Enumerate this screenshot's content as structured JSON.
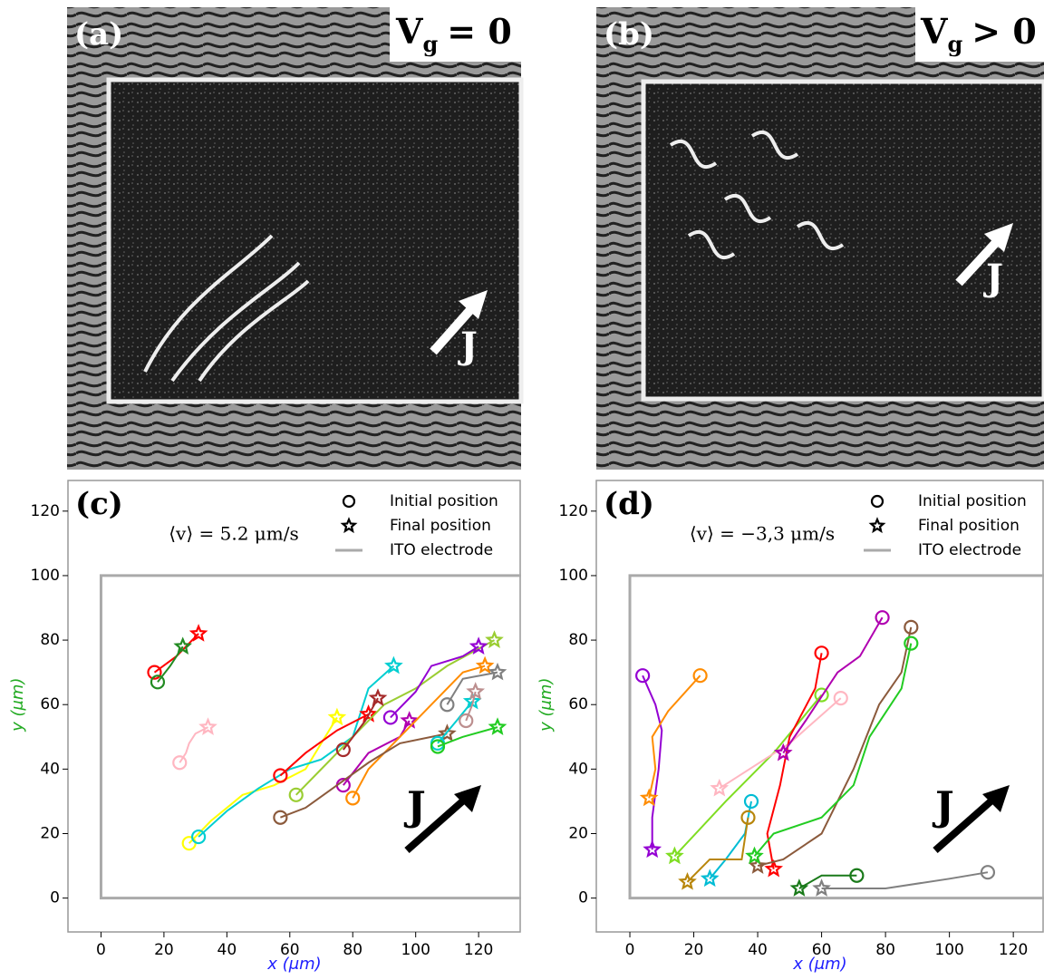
{
  "images": [
    {
      "label": "(a)",
      "symbol": "V",
      "subscript": "g",
      "relation": "= 0",
      "current_label": "J"
    },
    {
      "label": "(b)",
      "symbol": "V",
      "subscript": "g",
      "relation": "> 0",
      "current_label": "J"
    }
  ],
  "chart_data": [
    {
      "type": "line",
      "panel_label": "(c)",
      "annotation": "⟨v⟩ = 5.2 μm/s",
      "current_label": "J",
      "x_label": "x (μm)",
      "y_label": "y (μm)",
      "xlim": [
        -10.5,
        133.5
      ],
      "ylim": [
        -10.5,
        129.5
      ],
      "xticks": [
        0,
        20,
        40,
        60,
        80,
        100,
        120
      ],
      "yticks": [
        0,
        20,
        40,
        60,
        80,
        100,
        120
      ],
      "initial_marker_label": "Initial position",
      "final_marker_label": "Final position",
      "electrode": {
        "name": "ITO electrode",
        "color": "#aaaaaa",
        "x": [
          140,
          0,
          0,
          140
        ],
        "y": [
          100,
          100,
          0,
          0
        ]
      },
      "trajectories": [
        {
          "color": "#ff0000",
          "x": [
            17,
            24,
            31
          ],
          "y": [
            70,
            75,
            82
          ]
        },
        {
          "color": "#228b22",
          "x": [
            18,
            22,
            26
          ],
          "y": [
            67,
            72,
            78
          ]
        },
        {
          "color": "#ffb6c1",
          "x": [
            25,
            27,
            28,
            30,
            34
          ],
          "y": [
            42,
            45,
            48,
            51,
            53
          ]
        },
        {
          "color": "#ffff00",
          "x": [
            28,
            35,
            45,
            55,
            65,
            75
          ],
          "y": [
            17,
            24,
            32,
            35,
            40,
            56
          ]
        },
        {
          "color": "#00ced1",
          "x": [
            31,
            40,
            50,
            60,
            70,
            80,
            85,
            93
          ],
          "y": [
            19,
            27,
            34,
            40,
            43,
            50,
            65,
            72
          ]
        },
        {
          "color": "#ff0000",
          "x": [
            57,
            65,
            75,
            85
          ],
          "y": [
            38,
            45,
            52,
            57
          ]
        },
        {
          "color": "#9acd32",
          "x": [
            62,
            70,
            80,
            90,
            100,
            110,
            125
          ],
          "y": [
            32,
            40,
            50,
            60,
            65,
            72,
            80
          ]
        },
        {
          "color": "#9400d3",
          "x": [
            92,
            100,
            105,
            115,
            120
          ],
          "y": [
            56,
            64,
            72,
            75,
            78
          ]
        },
        {
          "color": "#b000b0",
          "x": [
            77,
            85,
            95,
            98
          ],
          "y": [
            35,
            45,
            50,
            55
          ]
        },
        {
          "color": "#ff8c00",
          "x": [
            80,
            85,
            95,
            105,
            115,
            122
          ],
          "y": [
            31,
            40,
            50,
            60,
            70,
            72
          ]
        },
        {
          "color": "#8b5a3c",
          "x": [
            57,
            65,
            75,
            85,
            95,
            110
          ],
          "y": [
            25,
            28,
            35,
            42,
            48,
            51
          ]
        },
        {
          "color": "#a52a2a",
          "x": [
            77,
            84,
            88
          ],
          "y": [
            46,
            55,
            62
          ]
        },
        {
          "color": "#808080",
          "x": [
            110,
            115,
            126
          ],
          "y": [
            60,
            68,
            70
          ]
        },
        {
          "color": "#00ced1",
          "x": [
            107,
            113,
            118
          ],
          "y": [
            48,
            55,
            61
          ]
        },
        {
          "color": "#22cc22",
          "x": [
            107,
            115,
            126
          ],
          "y": [
            47,
            50,
            53
          ]
        },
        {
          "color": "#bc8f8f",
          "x": [
            116,
            118,
            119
          ],
          "y": [
            55,
            60,
            64
          ]
        }
      ]
    },
    {
      "type": "line",
      "panel_label": "(d)",
      "annotation": "⟨v⟩ = −3,3 μm/s",
      "current_label": "J",
      "x_label": "x (μm)",
      "y_label": "y (μm)",
      "xlim": [
        -10.5,
        129.6
      ],
      "ylim": [
        -10.5,
        129.5
      ],
      "xticks": [
        0,
        20,
        40,
        60,
        80,
        100,
        120
      ],
      "yticks": [
        0,
        20,
        40,
        60,
        80,
        100,
        120
      ],
      "initial_marker_label": "Initial position",
      "final_marker_label": "Final position",
      "electrode": {
        "name": "ITO electrode",
        "color": "#aaaaaa",
        "x": [
          140,
          0,
          0,
          140
        ],
        "y": [
          100,
          100,
          0,
          0
        ]
      },
      "trajectories": [
        {
          "color": "#9400d3",
          "x": [
            4,
            8,
            10,
            9,
            7,
            7
          ],
          "y": [
            69,
            60,
            52,
            40,
            25,
            15
          ]
        },
        {
          "color": "#ff8c00",
          "x": [
            22,
            12,
            7,
            8,
            6
          ],
          "y": [
            69,
            58,
            50,
            40,
            31
          ]
        },
        {
          "color": "#7fdd22",
          "x": [
            60,
            45,
            30,
            14
          ],
          "y": [
            63,
            45,
            30,
            13
          ]
        },
        {
          "color": "#ffb6c1",
          "x": [
            66,
            50,
            28
          ],
          "y": [
            62,
            48,
            34
          ]
        },
        {
          "color": "#ff0000",
          "x": [
            60,
            58,
            50,
            47,
            43,
            45
          ],
          "y": [
            76,
            65,
            50,
            35,
            20,
            9
          ]
        },
        {
          "color": "#b000b0",
          "x": [
            79,
            72,
            65,
            55,
            48
          ],
          "y": [
            87,
            75,
            70,
            55,
            45
          ]
        },
        {
          "color": "#8b5a3c",
          "x": [
            88,
            85,
            78,
            70,
            60,
            48,
            40
          ],
          "y": [
            84,
            70,
            60,
            40,
            20,
            12,
            10
          ]
        },
        {
          "color": "#22cc22",
          "x": [
            88,
            85,
            75,
            70,
            60,
            45,
            39
          ],
          "y": [
            79,
            65,
            50,
            35,
            25,
            20,
            13
          ]
        },
        {
          "color": "#00bcd4",
          "x": [
            38,
            36,
            30,
            25
          ],
          "y": [
            30,
            20,
            12,
            6
          ]
        },
        {
          "color": "#b8860b",
          "x": [
            37,
            35,
            25,
            18
          ],
          "y": [
            25,
            12,
            12,
            5
          ]
        },
        {
          "color": "#1a7a1a",
          "x": [
            71,
            60,
            53
          ],
          "y": [
            7,
            7,
            3
          ]
        },
        {
          "color": "#808080",
          "x": [
            112,
            100,
            80,
            60
          ],
          "y": [
            8,
            6,
            3,
            3
          ]
        }
      ]
    }
  ]
}
